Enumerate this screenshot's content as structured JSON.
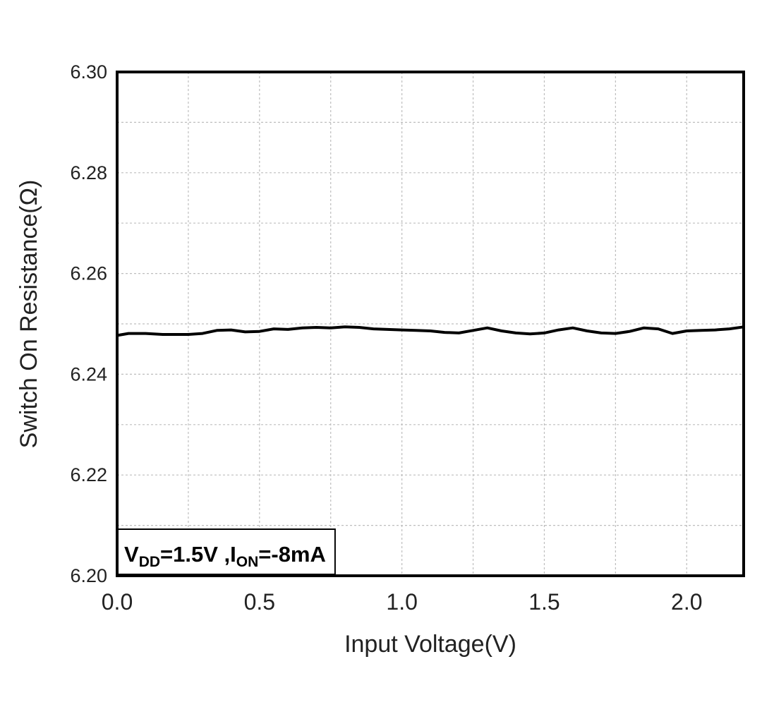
{
  "chart_data": {
    "type": "line",
    "title": "",
    "xlabel": "Input Voltage(V)",
    "ylabel": "Switch On Resistance(Ω)",
    "xlim": [
      0.0,
      2.2
    ],
    "ylim": [
      6.2,
      6.3
    ],
    "x_ticks": [
      0.0,
      0.5,
      1.0,
      1.5,
      2.0
    ],
    "x_tick_labels": [
      "0.0",
      "0.5",
      "1.0",
      "1.5",
      "2.0"
    ],
    "x_minor_grid": [
      0.25,
      0.75,
      1.25,
      1.75
    ],
    "y_ticks": [
      6.2,
      6.22,
      6.24,
      6.26,
      6.28,
      6.3
    ],
    "y_tick_labels": [
      "6.20",
      "6.22",
      "6.24",
      "6.26",
      "6.28",
      "6.30"
    ],
    "y_minor_grid": [
      6.21,
      6.23,
      6.25,
      6.27,
      6.29
    ],
    "grid": true,
    "line_color": "#000000",
    "annotation": {
      "v_symbol": "V",
      "v_sub": "DD",
      "v_value": "=1.5V ,",
      "i_symbol": "I",
      "i_sub": "ON",
      "i_value": "=-8mA",
      "placement": "bottom-left"
    },
    "series": [
      {
        "x": [
          0.0,
          0.04,
          0.1,
          0.16,
          0.2,
          0.25,
          0.3,
          0.35,
          0.4,
          0.45,
          0.5,
          0.55,
          0.6,
          0.65,
          0.7,
          0.75,
          0.8,
          0.85,
          0.9,
          0.95,
          1.0,
          1.05,
          1.1,
          1.15,
          1.2,
          1.25,
          1.3,
          1.35,
          1.4,
          1.45,
          1.5,
          1.55,
          1.6,
          1.65,
          1.7,
          1.75,
          1.8,
          1.85,
          1.9,
          1.95,
          2.0,
          2.05,
          2.1,
          2.15,
          2.2
        ],
        "y": [
          6.2477,
          6.2481,
          6.2481,
          6.2479,
          6.2479,
          6.2479,
          6.2481,
          6.2487,
          6.2488,
          6.2484,
          6.2485,
          6.249,
          6.2489,
          6.2492,
          6.2493,
          6.2492,
          6.2494,
          6.2493,
          6.249,
          6.2489,
          6.2488,
          6.2487,
          6.2486,
          6.2483,
          6.2482,
          6.2487,
          6.2492,
          6.2486,
          6.2482,
          6.248,
          6.2482,
          6.2488,
          6.2492,
          6.2486,
          6.2482,
          6.2481,
          6.2485,
          6.2492,
          6.249,
          6.2481,
          6.2486,
          6.2487,
          6.2488,
          6.249,
          6.2494
        ]
      }
    ]
  }
}
